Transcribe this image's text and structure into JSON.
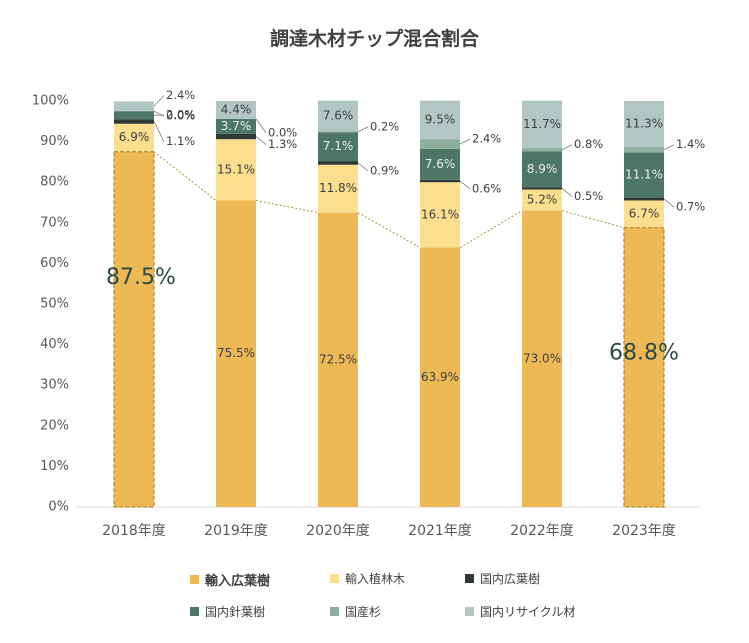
{
  "chart_data": {
    "type": "bar",
    "stacked": true,
    "title": "調達木材チップ混合割合",
    "categories": [
      "2018年度",
      "2019年度",
      "2020年度",
      "2021年度",
      "2022年度",
      "2023年度"
    ],
    "ylim": [
      0,
      100
    ],
    "y_ticks": [
      "0%",
      "10%",
      "20%",
      "30%",
      "40%",
      "50%",
      "60%",
      "70%",
      "80%",
      "90%",
      "100%"
    ],
    "grid": false,
    "legend_position": "bottom",
    "series": [
      {
        "name": "輸入広葉樹",
        "color": "#EDB954",
        "values": [
          87.5,
          75.5,
          72.5,
          63.9,
          73.0,
          68.8
        ],
        "labels": [
          "87.5%",
          "75.5%",
          "72.5%",
          "63.9%",
          "73.0%",
          "68.8%"
        ]
      },
      {
        "name": "輸入植林木",
        "color": "#FCDE8F",
        "values": [
          6.9,
          15.1,
          11.8,
          16.1,
          5.2,
          6.7
        ],
        "labels": [
          "6.9%",
          "15.1%",
          "11.8%",
          "16.1%",
          "5.2%",
          "6.7%"
        ]
      },
      {
        "name": "国内広葉樹",
        "color": "#2D3A36",
        "values": [
          1.1,
          1.3,
          0.9,
          0.6,
          0.5,
          0.7
        ],
        "labels": [
          "1.1%",
          "1.3%",
          "0.9%",
          "0.6%",
          "0.5%",
          "0.7%"
        ]
      },
      {
        "name": "国内針葉樹",
        "color": "#4E7668",
        "values": [
          2.0,
          3.7,
          7.1,
          7.6,
          8.9,
          11.1
        ],
        "labels": [
          "2.0%",
          "3.7%",
          "7.1%",
          "7.6%",
          "8.9%",
          "11.1%"
        ]
      },
      {
        "name": "国産杉",
        "color": "#8EAE9E",
        "values": [
          0.0,
          0.0,
          0.2,
          2.4,
          0.8,
          1.4
        ],
        "labels": [
          "0.0%",
          "0.0%",
          "0.2%",
          "2.4%",
          "0.8%",
          "1.4%"
        ]
      },
      {
        "name": "国内リサイクル材",
        "color": "#B2C6C4",
        "values": [
          2.4,
          4.4,
          7.6,
          9.5,
          11.7,
          11.3
        ],
        "labels": [
          "2.4%",
          "4.4%",
          "7.6%",
          "9.5%",
          "11.7%",
          "11.3%"
        ]
      }
    ],
    "highlight": {
      "categories": [
        "2018年度",
        "2023年度"
      ],
      "labels": [
        "87.5%",
        "68.8%"
      ],
      "color": "#2E4A45"
    },
    "connector_line": {
      "series": "輸入広葉樹",
      "style": "dotted",
      "color": "#A89A3A"
    }
  }
}
